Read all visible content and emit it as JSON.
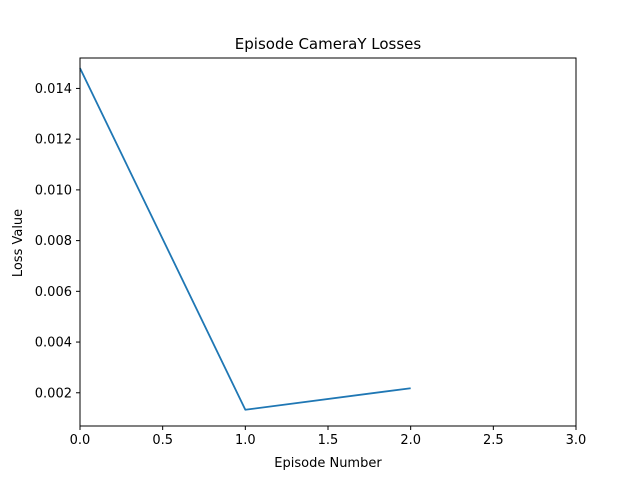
{
  "chart_data": {
    "type": "line",
    "title": "Episode CameraY Losses",
    "xlabel": "Episode Number",
    "ylabel": "Loss Value",
    "xlim": [
      0,
      3
    ],
    "ylim": [
      0.00069,
      0.0152
    ],
    "xticks": [
      "0.0",
      "0.5",
      "1.0",
      "1.5",
      "2.0",
      "2.5",
      "3.0"
    ],
    "yticks": [
      "0.002",
      "0.004",
      "0.006",
      "0.008",
      "0.010",
      "0.012",
      "0.014"
    ],
    "grid": false,
    "series": [
      {
        "x": [
          0,
          1,
          2
        ],
        "values": [
          0.0148,
          0.00133,
          0.00218
        ],
        "color": "#1f77b4"
      }
    ]
  }
}
